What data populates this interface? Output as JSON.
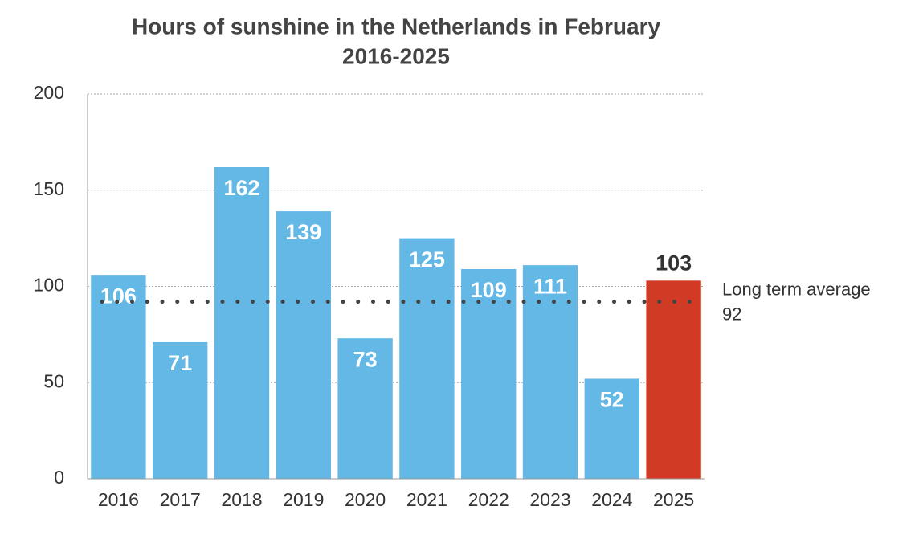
{
  "chart_data": {
    "type": "bar",
    "title": [
      "Hours of sunshine in the Netherlands in February",
      "2016-2025"
    ],
    "categories": [
      "2016",
      "2017",
      "2018",
      "2019",
      "2020",
      "2021",
      "2022",
      "2023",
      "2024",
      "2025"
    ],
    "values": [
      106,
      71,
      162,
      139,
      73,
      125,
      109,
      111,
      52,
      103
    ],
    "colors": [
      "#63b8e6",
      "#63b8e6",
      "#63b8e6",
      "#63b8e6",
      "#63b8e6",
      "#63b8e6",
      "#63b8e6",
      "#63b8e6",
      "#63b8e6",
      "#d13a24"
    ],
    "highlight_color": "#d13a24",
    "ylim": [
      0,
      200
    ],
    "yticks": [
      0,
      50,
      100,
      150,
      200
    ],
    "grid": true,
    "average": {
      "label": "Long term average",
      "value": 92
    }
  }
}
